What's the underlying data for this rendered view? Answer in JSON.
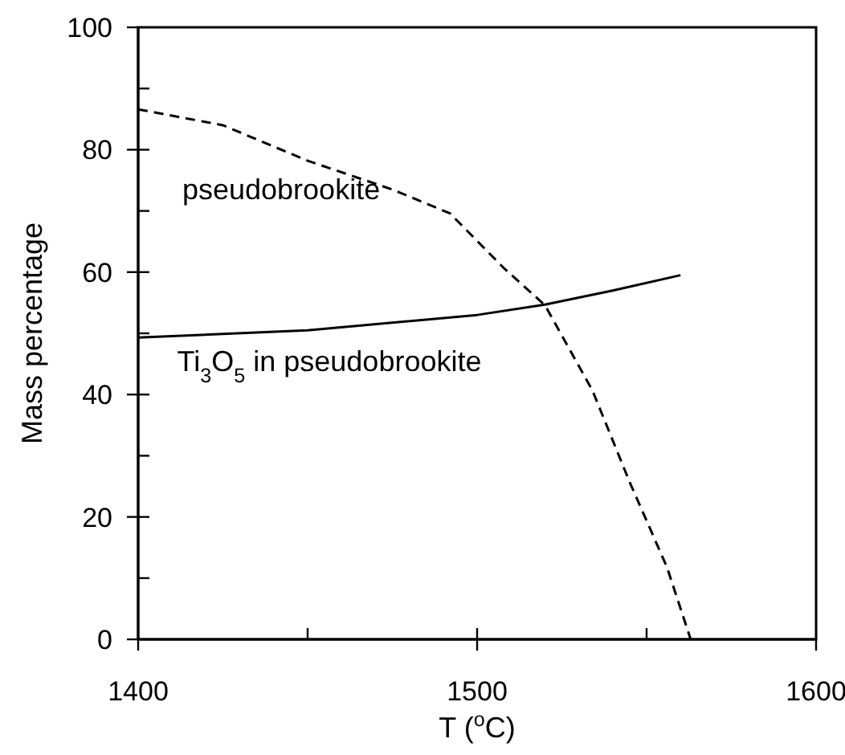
{
  "chart_data": {
    "type": "line",
    "xlabel": "T ($^{o}$C)",
    "ylabel": "Mass percentage",
    "xlim": [
      1400,
      1600
    ],
    "xticks": [
      1400,
      {
        "value": 1450,
        "label": null
      },
      1500,
      {
        "value": 1550,
        "label": null
      },
      1600
    ],
    "ylim": [
      0,
      100
    ],
    "yticks": [
      0,
      {
        "value": 10,
        "label": null
      },
      20,
      {
        "value": 30,
        "label": null
      },
      40,
      {
        "value": 50,
        "label": null
      },
      60,
      {
        "value": 70,
        "label": null
      },
      80,
      {
        "value": 90,
        "label": null
      },
      100
    ],
    "grid": false,
    "legend": false,
    "marker": "none",
    "series": [
      {
        "color": "#000000",
        "line_style": "dashed",
        "x": [
          1400,
          1425,
          1450,
          1475,
          1492,
          1508,
          1520,
          1534,
          1545,
          1556,
          1563
        ],
        "values": [
          86.6,
          84,
          78.2,
          73.5,
          69.6,
          60.6,
          54.6,
          40.7,
          25.7,
          11.8,
          0
        ]
      },
      {
        "color": "#000000",
        "line_style": "solid",
        "x": [
          1400,
          1450,
          1500,
          1520,
          1540,
          1560
        ],
        "values": [
          49.3,
          50.5,
          53,
          54.7,
          57,
          59.5
        ]
      }
    ],
    "annotations": [
      "pseudobrookite",
      "Ti$_{3}$O$_{5}$ in pseudobrookite"
    ]
  }
}
